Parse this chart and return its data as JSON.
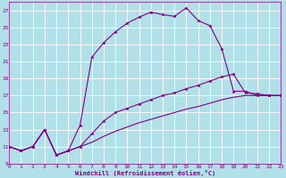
{
  "background_color": "#b2e0e8",
  "grid_color": "#d0eef4",
  "line_color": "#800080",
  "xlim": [
    0,
    23
  ],
  "ylim": [
    9,
    28
  ],
  "xticks": [
    0,
    1,
    2,
    3,
    4,
    5,
    6,
    7,
    8,
    9,
    10,
    11,
    12,
    13,
    14,
    15,
    16,
    17,
    18,
    19,
    20,
    21,
    22,
    23
  ],
  "yticks": [
    9,
    11,
    13,
    15,
    17,
    19,
    21,
    23,
    25,
    27
  ],
  "xlabel": "Windchill (Refroidissement éolien,°C)",
  "series": [
    {
      "x": [
        0,
        1,
        2,
        3,
        4,
        5,
        6,
        7,
        8,
        9,
        10,
        11,
        12,
        13,
        14,
        15,
        16,
        17,
        18,
        19,
        20,
        21,
        22,
        23
      ],
      "y": [
        11,
        10.5,
        11,
        13,
        10,
        10.5,
        13.5,
        21.5,
        23.2,
        24.5,
        25.5,
        26.2,
        26.8,
        26.5,
        26.3,
        27.3,
        25.8,
        25.2,
        22.5,
        17.5,
        17.5,
        17,
        17,
        17
      ],
      "marker": true,
      "lw": 0.8
    },
    {
      "x": [
        0,
        1,
        2,
        3,
        4,
        5,
        6,
        7,
        8,
        9,
        10,
        11,
        12,
        13,
        14,
        15,
        16,
        17,
        18,
        19,
        20,
        21,
        22,
        23
      ],
      "y": [
        11,
        10.5,
        11,
        13,
        10,
        10.5,
        11,
        12.5,
        14,
        15,
        15.5,
        16,
        16.5,
        17,
        17.3,
        17.8,
        18.2,
        18.7,
        19.2,
        19.5,
        17.3,
        17.2,
        17,
        17
      ],
      "marker": true,
      "lw": 0.8
    },
    {
      "x": [
        0,
        1,
        2,
        3,
        4,
        5,
        6,
        7,
        8,
        9,
        10,
        11,
        12,
        13,
        14,
        15,
        16,
        17,
        18,
        19,
        20,
        21,
        22,
        23
      ],
      "y": [
        11,
        10.5,
        11,
        13,
        10,
        10.5,
        11,
        11.5,
        12.2,
        12.8,
        13.3,
        13.8,
        14.2,
        14.6,
        15.0,
        15.4,
        15.7,
        16.1,
        16.5,
        16.8,
        17,
        17,
        17,
        17
      ],
      "marker": false,
      "lw": 0.8
    }
  ]
}
